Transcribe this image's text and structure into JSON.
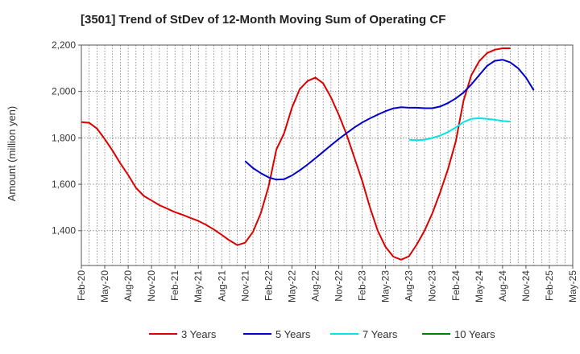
{
  "chart_data": {
    "type": "line",
    "title": "[3501]  Trend of StDev of 12-Month Moving Sum of Operating CF",
    "ylabel": "Amount (million yen)",
    "xlabel": "",
    "ylim": [
      1250,
      2200
    ],
    "yticks": [
      1400,
      1600,
      1800,
      2000,
      2200
    ],
    "ytick_labels": [
      "1,400",
      "1,600",
      "1,800",
      "2,000",
      "2,200"
    ],
    "x_start": "Feb-20",
    "x_months": 63,
    "xtick_labels": [
      "Feb-20",
      "May-20",
      "Aug-20",
      "Nov-20",
      "Feb-21",
      "May-21",
      "Aug-21",
      "Nov-21",
      "Feb-22",
      "May-22",
      "Aug-22",
      "Nov-22",
      "Feb-23",
      "May-23",
      "Aug-23",
      "Nov-23",
      "Feb-24",
      "May-24",
      "Aug-24",
      "Nov-24",
      "Feb-25",
      "May-25"
    ],
    "grid": true,
    "legend_position": "bottom",
    "series": [
      {
        "name": "3 Years",
        "color": "#dd0000",
        "start_month_index": 0,
        "values": [
          1868,
          1865,
          1840,
          1795,
          1745,
          1690,
          1640,
          1585,
          1550,
          1530,
          1510,
          1495,
          1480,
          1468,
          1455,
          1442,
          1425,
          1405,
          1382,
          1358,
          1338,
          1348,
          1395,
          1475,
          1590,
          1750,
          1820,
          1930,
          2010,
          2045,
          2060,
          2035,
          1975,
          1900,
          1815,
          1715,
          1615,
          1500,
          1400,
          1330,
          1288,
          1275,
          1290,
          1340,
          1400,
          1475,
          1565,
          1665,
          1785,
          1960,
          2070,
          2130,
          2165,
          2180,
          2186,
          2186
        ]
      },
      {
        "name": "5 Years",
        "color": "#0000cc",
        "start_month_index": 21,
        "values": [
          1700,
          1670,
          1648,
          1630,
          1620,
          1622,
          1638,
          1660,
          1685,
          1712,
          1740,
          1768,
          1795,
          1820,
          1845,
          1866,
          1884,
          1900,
          1915,
          1927,
          1932,
          1930,
          1930,
          1928,
          1928,
          1935,
          1950,
          1970,
          1995,
          2030,
          2070,
          2110,
          2132,
          2137,
          2125,
          2100,
          2060,
          2005
        ]
      },
      {
        "name": "7 Years",
        "color": "#00e5e5",
        "start_month_index": 42,
        "values": [
          1792,
          1790,
          1792,
          1800,
          1810,
          1825,
          1845,
          1868,
          1882,
          1885,
          1882,
          1878,
          1873,
          1870
        ]
      },
      {
        "name": "10 Years",
        "color": "#008000",
        "start_month_index": 0,
        "values": []
      }
    ]
  }
}
